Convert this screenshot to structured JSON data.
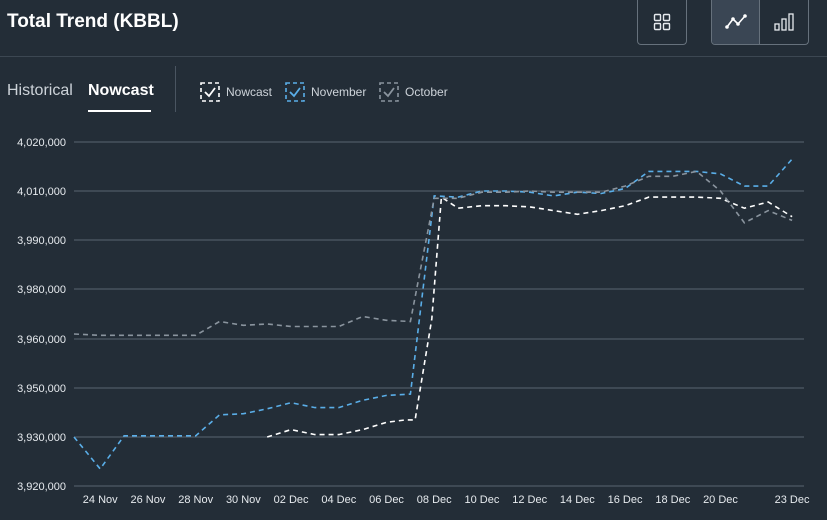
{
  "header": {
    "title": "Total Trend (KBBL)"
  },
  "tabs": [
    {
      "label": "Historical",
      "active": false
    },
    {
      "label": "Nowcast",
      "active": true
    }
  ],
  "legend": [
    {
      "label": "Nowcast",
      "color": "#ffffff"
    },
    {
      "label": "November",
      "color": "#5aaee8"
    },
    {
      "label": "October",
      "color": "#8a949e"
    }
  ],
  "toolbar": {
    "grid_icon": "grid-icon",
    "line_icon": "line-chart-icon",
    "bar_icon": "bar-chart-icon"
  },
  "chart_data": {
    "type": "line",
    "y_ticks": [
      {
        "label": "4,020,000",
        "pos": 4020000
      },
      {
        "label": "4,010,000",
        "pos": 4010000
      },
      {
        "label": "3,990,000",
        "pos": 3990000
      },
      {
        "label": "3,980,000",
        "pos": 3980000
      },
      {
        "label": "3,960,000",
        "pos": 3960000
      },
      {
        "label": "3,950,000",
        "pos": 3950000
      },
      {
        "label": "3,930,000",
        "pos": 3930000
      },
      {
        "label": "3,920,000",
        "pos": 3920000
      }
    ],
    "x_ticks": [
      {
        "label": "24 Nov",
        "day": 1
      },
      {
        "label": "26 Nov",
        "day": 3
      },
      {
        "label": "28 Nov",
        "day": 5
      },
      {
        "label": "30 Nov",
        "day": 7
      },
      {
        "label": "02 Dec",
        "day": 9
      },
      {
        "label": "04 Dec",
        "day": 11
      },
      {
        "label": "06 Dec",
        "day": 13
      },
      {
        "label": "08 Dec",
        "day": 15
      },
      {
        "label": "10 Dec",
        "day": 17
      },
      {
        "label": "12 Dec",
        "day": 19
      },
      {
        "label": "14 Dec",
        "day": 21
      },
      {
        "label": "16 Dec",
        "day": 23
      },
      {
        "label": "18 Dec",
        "day": 25
      },
      {
        "label": "20 Dec",
        "day": 27
      },
      {
        "label": "23 Dec",
        "day": 30
      }
    ],
    "ylim": [
      3920000,
      4020000
    ],
    "xlim": [
      -0.1,
      30.5
    ],
    "series": [
      {
        "name": "Nowcast",
        "color": "#ffffff",
        "dash": "5,4",
        "points": [
          [
            8,
            3930000
          ],
          [
            9,
            3933000
          ],
          [
            10,
            3931000
          ],
          [
            11,
            3931000
          ],
          [
            12,
            3933000
          ],
          [
            13,
            3936000
          ],
          [
            13.8,
            3937000
          ],
          [
            14.2,
            3937000
          ],
          [
            14.9,
            3968000
          ],
          [
            15.3,
            4007500
          ],
          [
            16,
            4003000
          ],
          [
            17,
            4004000
          ],
          [
            18,
            4004000
          ],
          [
            19,
            4003500
          ],
          [
            20,
            4002000
          ],
          [
            21,
            4000500
          ],
          [
            22,
            4002000
          ],
          [
            23,
            4004000
          ],
          [
            24,
            4007500
          ],
          [
            25,
            4007500
          ],
          [
            26,
            4007500
          ],
          [
            27,
            4007000
          ],
          [
            28,
            4003000
          ],
          [
            29,
            4005500
          ],
          [
            30,
            3999500
          ]
        ]
      },
      {
        "name": "November",
        "color": "#5aaee8",
        "dash": "5,4",
        "points": [
          [
            -0.1,
            3930000
          ],
          [
            1,
            3923500
          ],
          [
            2,
            3930500
          ],
          [
            3,
            3930500
          ],
          [
            4,
            3930500
          ],
          [
            5,
            3930500
          ],
          [
            6,
            3939000
          ],
          [
            7,
            3939500
          ],
          [
            8,
            3941500
          ],
          [
            9,
            3944000
          ],
          [
            10,
            3942000
          ],
          [
            11,
            3942000
          ],
          [
            12,
            3945000
          ],
          [
            13,
            3947000
          ],
          [
            14,
            3947500
          ],
          [
            15,
            4008000
          ],
          [
            16,
            4007500
          ],
          [
            17,
            4010000
          ],
          [
            18,
            4010000
          ],
          [
            19,
            4009500
          ],
          [
            20,
            4008000
          ],
          [
            21,
            4009500
          ],
          [
            22,
            4009000
          ],
          [
            23,
            4010500
          ],
          [
            24,
            4014000
          ],
          [
            25,
            4014000
          ],
          [
            26,
            4014000
          ],
          [
            27,
            4013500
          ],
          [
            28,
            4011000
          ],
          [
            29,
            4011000
          ],
          [
            30,
            4016500
          ]
        ]
      },
      {
        "name": "October",
        "color": "#8a949e",
        "dash": "5,4",
        "points": [
          [
            -0.1,
            3962000
          ],
          [
            1,
            3961500
          ],
          [
            2,
            3961500
          ],
          [
            3,
            3961500
          ],
          [
            4,
            3961500
          ],
          [
            5,
            3961500
          ],
          [
            6,
            3967000
          ],
          [
            7,
            3965500
          ],
          [
            8,
            3966000
          ],
          [
            9,
            3965000
          ],
          [
            10,
            3965000
          ],
          [
            11,
            3965000
          ],
          [
            12,
            3969000
          ],
          [
            13,
            3967500
          ],
          [
            14,
            3967000
          ],
          [
            15,
            4007000
          ],
          [
            16,
            4007000
          ],
          [
            17,
            4009500
          ],
          [
            18,
            4009500
          ],
          [
            19,
            4010000
          ],
          [
            20,
            4009500
          ],
          [
            21,
            4009500
          ],
          [
            22,
            4009500
          ],
          [
            23,
            4011000
          ],
          [
            24,
            4013000
          ],
          [
            25,
            4013000
          ],
          [
            26,
            4014000
          ],
          [
            27,
            4010000
          ],
          [
            28,
            3997000
          ],
          [
            29,
            4002000
          ],
          [
            30,
            3998000
          ]
        ]
      }
    ]
  }
}
